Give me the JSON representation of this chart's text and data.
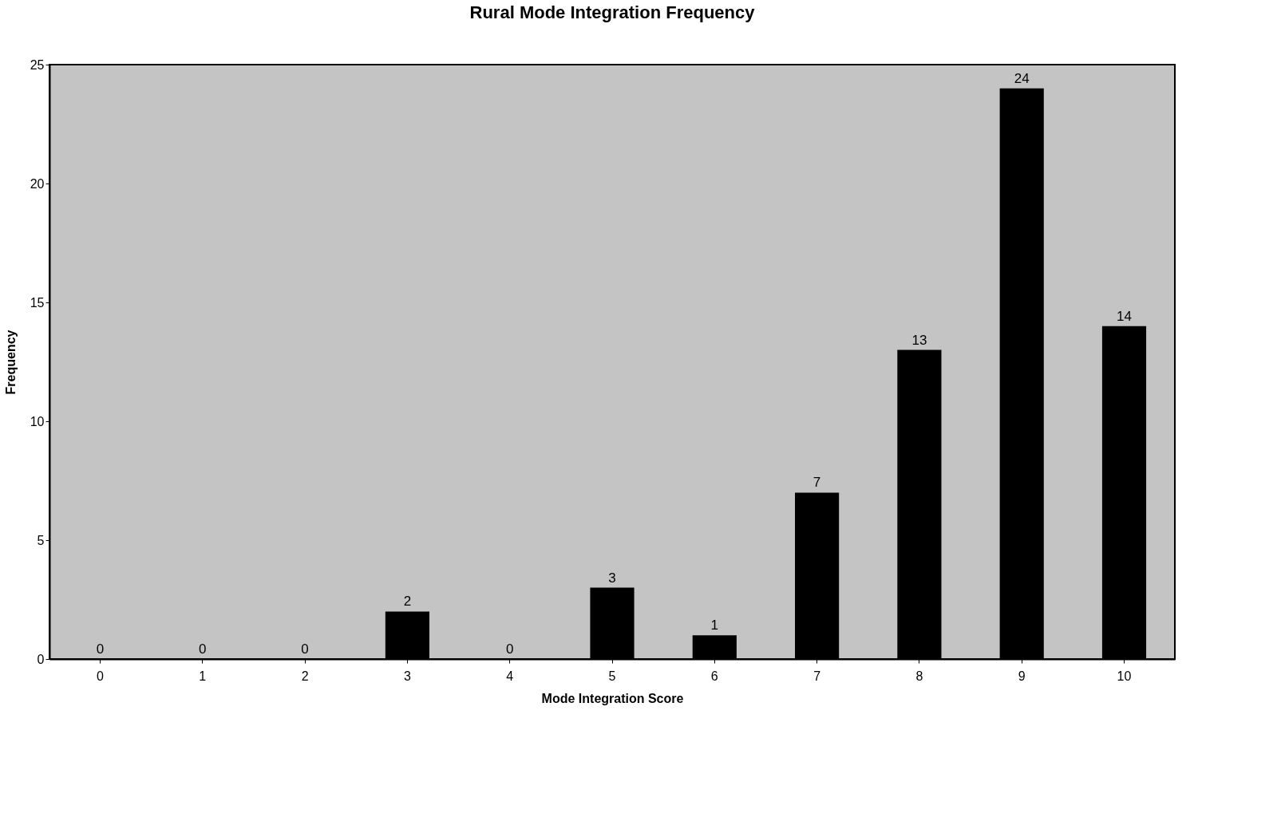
{
  "chart_data": {
    "type": "bar",
    "title": "Rural Mode Integration Frequency",
    "xlabel": "Mode Integration Score",
    "ylabel": "Frequency",
    "categories": [
      "0",
      "1",
      "2",
      "3",
      "4",
      "5",
      "6",
      "7",
      "8",
      "9",
      "10"
    ],
    "values": [
      0,
      0,
      0,
      2,
      0,
      3,
      1,
      7,
      13,
      24,
      14
    ],
    "color": "#000000",
    "ylim": [
      0,
      25
    ],
    "yticks": [
      0,
      5,
      10,
      15,
      20,
      25
    ],
    "grid": false,
    "data_labels": true
  }
}
